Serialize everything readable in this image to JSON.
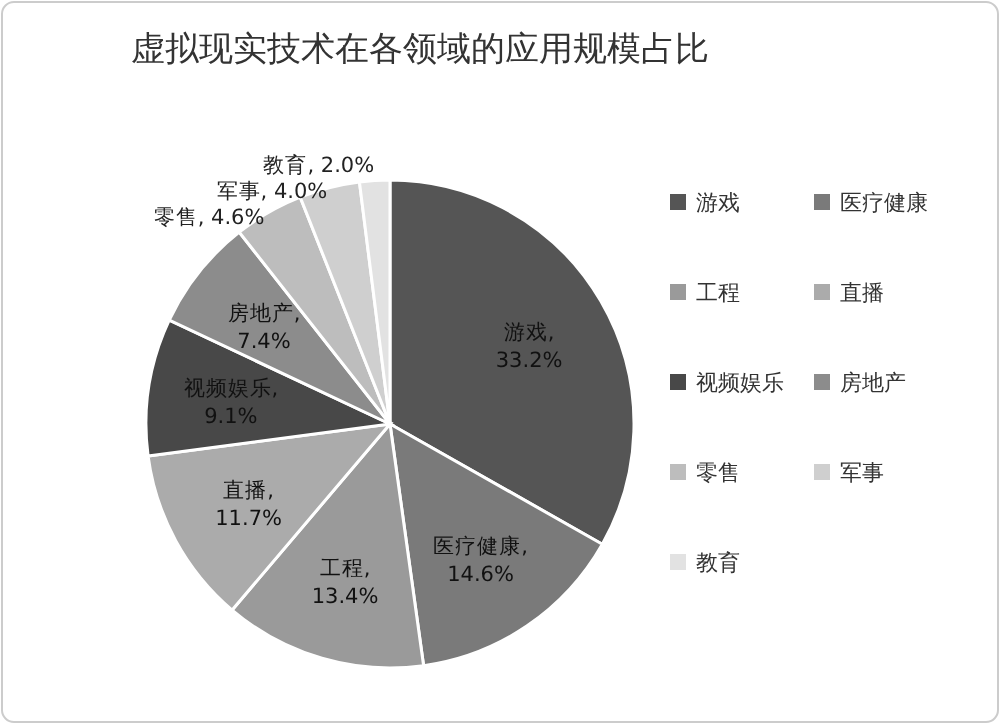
{
  "chart_data": {
    "type": "pie",
    "title": "虚拟现实技术在各领域的应用规模占比",
    "categories": [
      "游戏",
      "医疗健康",
      "工程",
      "直播",
      "视频娱乐",
      "房地产",
      "零售",
      "军事",
      "教育"
    ],
    "values": [
      33.2,
      14.6,
      13.4,
      11.7,
      9.1,
      7.4,
      4.6,
      4.0,
      2.0
    ],
    "value_labels": [
      "游戏, 33.2%",
      "医疗健康, 14.6%",
      "工程, 13.4%",
      "直播, 11.7%",
      "视频娱乐, 9.1%",
      "房地产, 7.4%",
      "零售, 4.6%",
      "军事, 4.0%",
      "教育, 2.0%"
    ],
    "colors": [
      "#555555",
      "#7a7a7a",
      "#9a9a9a",
      "#ababab",
      "#484848",
      "#8c8c8c",
      "#bdbdbd",
      "#cfcfcf",
      "#e2e2e2"
    ],
    "legend": "right"
  }
}
